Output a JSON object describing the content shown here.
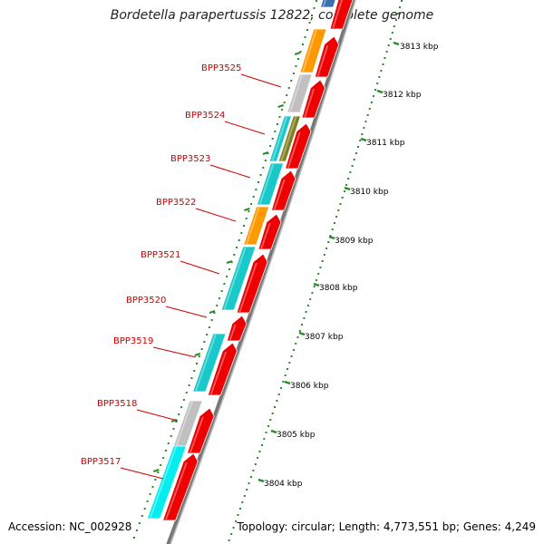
{
  "title": "Bordetella parapertussis 12822, complete genome",
  "footer": {
    "accession": "Accession: NC_002928",
    "topology": "Topology: circular; Length: 4,773,551 bp; Genes: 4,249"
  },
  "colors": {
    "red": "#ee0000",
    "orange": "#ff9900",
    "gray": "#c0c0c0",
    "teal": "#19c8c8",
    "cyan": "#00eeee",
    "olive": "#808020",
    "blue": "#3a6fb0",
    "label": "#cc0000",
    "tick": "#2a8a2a",
    "backbone": "#777777"
  },
  "gene_labels": [
    "BPP3525",
    "BPP3524",
    "BPP3523",
    "BPP3522",
    "BPP3521",
    "BPP3520",
    "BPP3519",
    "BPP3518",
    "BPP3517"
  ],
  "kbp_labels": [
    "3813 kbp",
    "3812 kbp",
    "3811 kbp",
    "3810 kbp",
    "3809 kbp",
    "3808 kbp",
    "3807 kbp",
    "3806 kbp",
    "3805 kbp",
    "3804 kbp"
  ],
  "genes": [
    {
      "kind": "blue",
      "strand": "forward"
    },
    {
      "kind": "red",
      "strand": "reverse"
    },
    {
      "kind": "orange",
      "strand": "forward"
    },
    {
      "kind": "red",
      "strand": "reverse"
    },
    {
      "kind": "gray",
      "strand": "forward"
    },
    {
      "kind": "red",
      "strand": "reverse"
    },
    {
      "kind": "teal",
      "strand": "forward"
    },
    {
      "kind": "olive",
      "strand": "forward"
    },
    {
      "kind": "red",
      "strand": "reverse"
    },
    {
      "kind": "teal",
      "strand": "forward"
    },
    {
      "kind": "red",
      "strand": "reverse"
    },
    {
      "kind": "orange",
      "strand": "forward"
    },
    {
      "kind": "red",
      "strand": "reverse"
    },
    {
      "kind": "teal",
      "strand": "forward"
    },
    {
      "kind": "red",
      "strand": "reverse"
    },
    {
      "kind": "red",
      "strand": "reverse"
    },
    {
      "kind": "teal",
      "strand": "forward"
    },
    {
      "kind": "red",
      "strand": "reverse"
    },
    {
      "kind": "gray",
      "strand": "forward"
    },
    {
      "kind": "red",
      "strand": "reverse"
    },
    {
      "kind": "cyan",
      "strand": "forward"
    },
    {
      "kind": "red",
      "strand": "reverse"
    }
  ]
}
